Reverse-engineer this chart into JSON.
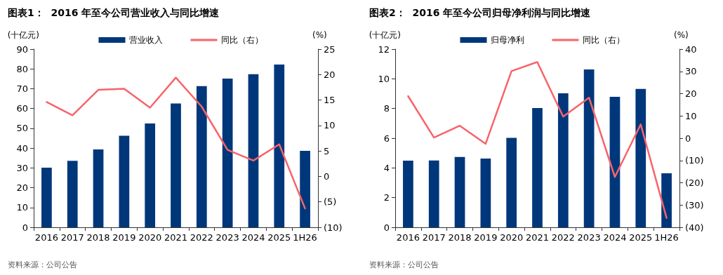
{
  "chart_data": [
    {
      "type": "bar",
      "title": "图表1：  2016 年至今公司营业收入与同比增速",
      "ylabel": "(十亿元)",
      "y2label": "(%)",
      "categories": [
        "2016",
        "2017",
        "2018",
        "2019",
        "2020",
        "2021",
        "2022",
        "2023",
        "2024",
        "2025",
        "1H26"
      ],
      "series": [
        {
          "name": "营业收入",
          "color": "#00377a",
          "values": [
            30.1,
            33.6,
            39.3,
            46.2,
            52.4,
            62.5,
            71.3,
            75.1,
            77.3,
            82.2,
            38.6
          ]
        },
        {
          "name": "同比（右）",
          "type": "line",
          "axis": "y2",
          "color": "#f8636a",
          "values": [
            14.6,
            12.0,
            17.0,
            17.2,
            13.5,
            19.4,
            13.7,
            5.2,
            3.1,
            6.3,
            -6.3
          ]
        }
      ],
      "ylim": [
        0,
        90
      ],
      "yticks": [
        0,
        10,
        20,
        30,
        40,
        50,
        60,
        70,
        80,
        90
      ],
      "y2lim": [
        -10,
        25
      ],
      "y2ticks": [
        {
          "value": -10,
          "label": "(10)"
        },
        {
          "value": -5,
          "label": "(5)"
        },
        0,
        5,
        10,
        15,
        20,
        25
      ],
      "grid": false,
      "legend": "top",
      "marker": "none",
      "line_style": "solid",
      "annotations": [
        "资料来源：公司公告"
      ]
    },
    {
      "type": "bar",
      "title": "图表2：  2016 年至今公司归母净利润与同比增速",
      "ylabel": "(十亿元)",
      "y2label": "(%)",
      "categories": [
        "2016",
        "2017",
        "2018",
        "2019",
        "2020",
        "2021",
        "2022",
        "2023",
        "2024",
        "2025",
        "1H26"
      ],
      "series": [
        {
          "name": "归母净利",
          "color": "#00377a",
          "values": [
            4.49,
            4.5,
            4.74,
            4.63,
            6.02,
            8.03,
            9.02,
            10.63,
            8.79,
            9.32,
            3.64
          ]
        },
        {
          "name": "同比（右）",
          "type": "line",
          "axis": "y2",
          "color": "#f8636a",
          "values": [
            18.9,
            0.3,
            5.6,
            -2.5,
            30.1,
            34.2,
            9.7,
            18.2,
            -17.4,
            6.2,
            -35.8
          ]
        }
      ],
      "ylim": [
        0,
        12
      ],
      "yticks": [
        0,
        2,
        4,
        6,
        8,
        10,
        12
      ],
      "y2lim": [
        -40,
        40
      ],
      "y2ticks": [
        {
          "value": -40,
          "label": "(40)"
        },
        {
          "value": -30,
          "label": "(30)"
        },
        {
          "value": -20,
          "label": "(20)"
        },
        {
          "value": -10,
          "label": "(10)"
        },
        0,
        10,
        20,
        30,
        40
      ],
      "grid": false,
      "legend": "top",
      "marker": "none",
      "line_style": "solid",
      "annotations": [
        "资料来源：公司公告"
      ]
    }
  ]
}
